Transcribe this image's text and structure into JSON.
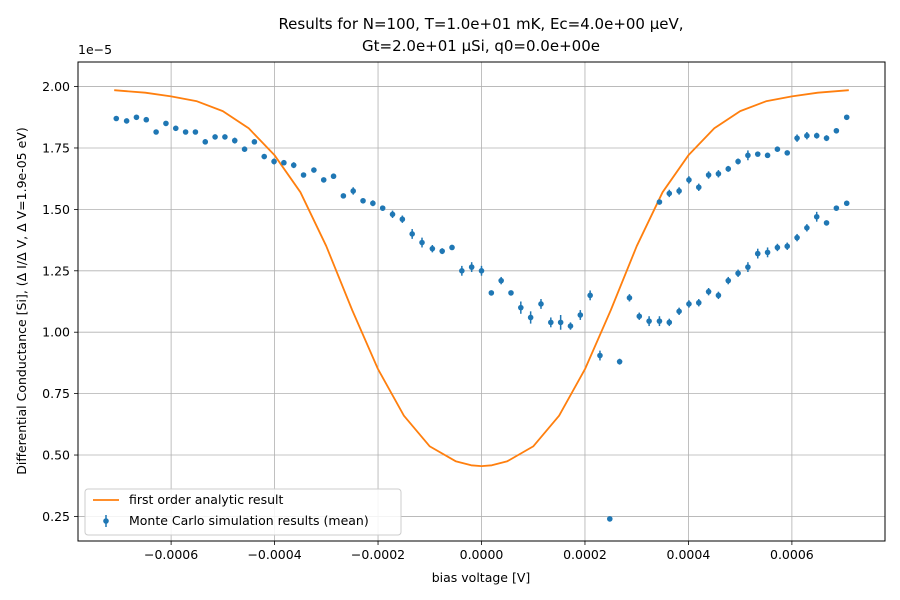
{
  "chart_data": {
    "type": "line",
    "title_line1": "Results for N=100, T=1.0e+01 mK, Ec=4.0e+00 μeV,",
    "title_line2": "Gt=2.0e+01 μSi, q0=0.0e+00e",
    "xlabel": "bias voltage [V]",
    "ylabel": "Differential Conductance [Si], (Δ I/Δ V, Δ V=1.9e-05 eV)",
    "y_multiplier": "1e−5",
    "xlim": [
      -0.00078,
      0.00078
    ],
    "ylim": [
      0.15,
      2.1
    ],
    "grid": true,
    "legend_position": "lower-left",
    "x_ticks": [
      -0.0006,
      -0.0004,
      -0.0002,
      0,
      0.0002,
      0.0004,
      0.0006
    ],
    "x_tick_labels": [
      "−0.0006",
      "−0.0004",
      "−0.0002",
      "0.0000",
      "0.0002",
      "0.0004",
      "0.0006"
    ],
    "y_ticks": [
      0.25,
      0.5,
      0.75,
      1.0,
      1.25,
      1.5,
      1.75,
      2.0
    ],
    "y_tick_labels": [
      "0.25",
      "0.50",
      "0.75",
      "1.00",
      "1.25",
      "1.50",
      "1.75",
      "2.00"
    ],
    "series": [
      {
        "name": "first order analytic result",
        "kind": "line",
        "color": "#ff7f0e",
        "x": [
          -0.00071,
          -0.00065,
          -0.0006,
          -0.00055,
          -0.0005,
          -0.00045,
          -0.0004,
          -0.00035,
          -0.0003,
          -0.00025,
          -0.0002,
          -0.00015,
          -0.0001,
          -5e-05,
          -2e-05,
          0,
          2e-05,
          5e-05,
          0.0001,
          0.00015,
          0.0002,
          0.00025,
          0.0003,
          0.00035,
          0.0004,
          0.00045,
          0.0005,
          0.00055,
          0.0006,
          0.00065,
          0.00071
        ],
        "y": [
          1.985,
          1.975,
          1.96,
          1.94,
          1.9,
          1.83,
          1.72,
          1.57,
          1.35,
          1.09,
          0.85,
          0.66,
          0.535,
          0.475,
          0.458,
          0.455,
          0.458,
          0.475,
          0.535,
          0.66,
          0.85,
          1.09,
          1.35,
          1.57,
          1.72,
          1.83,
          1.9,
          1.94,
          1.96,
          1.975,
          1.985
        ]
      },
      {
        "name": "Monte Carlo simulation results (mean)",
        "kind": "errorbar",
        "color": "#1f77b4",
        "x": [
          -0.000706,
          -0.000686,
          -0.000667,
          -0.000648,
          -0.000629,
          -0.00061,
          -0.000591,
          -0.000572,
          -0.000553,
          -0.000534,
          -0.000515,
          -0.000496,
          -0.000477,
          -0.000458,
          -0.000439,
          -0.00042,
          -0.000401,
          -0.000382,
          -0.000363,
          -0.000344,
          -0.000324,
          -0.000305,
          -0.000286,
          -0.000267,
          -0.000248,
          -0.000229,
          -0.00021,
          -0.000191,
          -0.000172,
          -0.000153,
          -0.000134,
          -0.000115,
          -9.5e-05,
          -7.6e-05,
          -5.7e-05,
          -3.8e-05,
          -1.9e-05,
          0,
          1.9e-05,
          3.8e-05,
          5.7e-05,
          7.6e-05,
          9.5e-05,
          0.000115,
          0.000134,
          0.000153,
          0.000172,
          0.000191,
          0.00021,
          0.000229,
          0.000248,
          0.000267,
          0.000286,
          0.000305,
          0.000324,
          0.000344,
          0.000363,
          0.000382,
          0.000401,
          0.00042,
          0.000439,
          0.000458,
          0.000477,
          0.000496,
          0.000515,
          0.000534,
          0.000553,
          0.000572,
          0.000591,
          0.00061,
          0.000629,
          0.000648,
          0.000667,
          0.000686,
          0.000706
        ],
        "y": [
          1.87,
          1.86,
          1.875,
          1.865,
          1.815,
          1.85,
          1.83,
          1.815,
          1.815,
          1.775,
          1.795,
          1.795,
          1.78,
          1.745,
          1.775,
          1.715,
          1.695,
          1.69,
          1.68,
          1.64,
          1.66,
          1.62,
          1.635,
          1.555,
          1.575,
          1.535,
          1.525,
          1.505,
          1.48,
          1.46,
          1.4,
          1.365,
          1.34,
          1.33,
          1.345,
          1.25,
          1.265,
          1.25,
          1.16,
          1.21,
          1.16,
          1.1,
          1.06,
          1.115,
          1.04,
          1.04,
          1.025,
          1.07,
          1.15,
          0.905,
          0.24,
          0.88,
          1.14,
          1.065,
          1.045,
          1.045,
          1.04,
          1.085,
          1.115,
          1.12,
          1.165,
          1.15,
          1.21,
          1.24,
          1.265,
          1.32,
          1.325,
          1.345,
          1.35,
          1.385,
          1.425,
          1.47,
          1.445,
          1.505,
          1.525
        ],
        "yerr": [
          0.008,
          0.008,
          0.008,
          0.008,
          0.008,
          0.008,
          0.008,
          0.008,
          0.008,
          0.01,
          0.008,
          0.01,
          0.012,
          0.01,
          0.008,
          0.01,
          0.012,
          0.008,
          0.012,
          0.01,
          0.008,
          0.01,
          0.01,
          0.01,
          0.015,
          0.01,
          0.012,
          0.01,
          0.015,
          0.015,
          0.02,
          0.02,
          0.015,
          0.012,
          0.01,
          0.02,
          0.02,
          0.02,
          0.01,
          0.015,
          0.01,
          0.025,
          0.025,
          0.02,
          0.02,
          0.03,
          0.015,
          0.02,
          0.02,
          0.02,
          0.01,
          0.012,
          0.015,
          0.015,
          0.02,
          0.02,
          0.015,
          0.015,
          0.015,
          0.015,
          0.015,
          0.015,
          0.015,
          0.015,
          0.02,
          0.02,
          0.02,
          0.015,
          0.015,
          0.015,
          0.015,
          0.02,
          0.01,
          0.01,
          0.01
        ]
      },
      {
        "name": "",
        "kind": "errorbar-continued",
        "color": "#1f77b4",
        "x": [
          0.000344,
          0.000363,
          0.000382,
          0.000401,
          0.00042,
          0.000439,
          0.000458,
          0.000477,
          0.000496,
          0.000515,
          0.000534,
          0.000553,
          0.000572,
          0.000591,
          0.00061,
          0.000629,
          0.000648,
          0.000667,
          0.000686,
          0.000706
        ],
        "y": [
          1.53,
          1.565,
          1.575,
          1.62,
          1.59,
          1.64,
          1.645,
          1.665,
          1.695,
          1.72,
          1.725,
          1.72,
          1.745,
          1.73,
          1.79,
          1.8,
          1.8,
          1.79,
          1.82,
          1.875
        ],
        "yerr": [
          0.01,
          0.015,
          0.015,
          0.015,
          0.015,
          0.015,
          0.015,
          0.012,
          0.012,
          0.02,
          0.01,
          0.01,
          0.01,
          0.01,
          0.015,
          0.015,
          0.012,
          0.012,
          0.01,
          0.008
        ]
      }
    ]
  }
}
